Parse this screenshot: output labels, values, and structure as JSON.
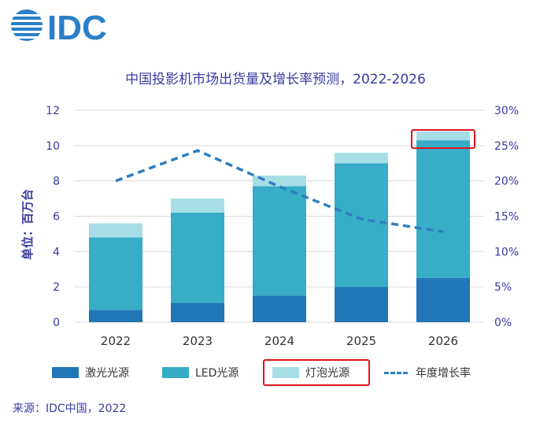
{
  "logo": {
    "text": "IDC",
    "color": "#2a7fc7"
  },
  "chart_data": {
    "type": "bar",
    "stacked": true,
    "title": "中国投影机市场出货量及增长率预测，2022-2026",
    "ylabel": "单位：百万台",
    "categories": [
      "2022",
      "2023",
      "2024",
      "2025",
      "2026"
    ],
    "ylim": [
      0,
      12
    ],
    "y_ticks": [
      "0",
      "2",
      "4",
      "6",
      "8",
      "10",
      "12"
    ],
    "y2lim": [
      0,
      30
    ],
    "y2_ticks": [
      "0%",
      "5%",
      "10%",
      "15%",
      "20%",
      "25%",
      "30%"
    ],
    "series": [
      {
        "name": "激光光源",
        "color": "#2176b5",
        "values": [
          0.7,
          1.1,
          1.5,
          2.0,
          2.5
        ]
      },
      {
        "name": "LED光源",
        "color": "#37adc7",
        "values": [
          4.1,
          5.1,
          6.2,
          7.0,
          7.8
        ]
      },
      {
        "name": "灯泡光源",
        "color": "#a6dde6",
        "values": [
          0.8,
          0.8,
          0.6,
          0.6,
          0.5
        ]
      }
    ],
    "line_series": {
      "name": "年度增长率",
      "color": "#2e7fc1",
      "values": [
        20,
        24.3,
        19.2,
        14.6,
        12.8
      ]
    }
  },
  "source": "来源：IDC中国，2022"
}
